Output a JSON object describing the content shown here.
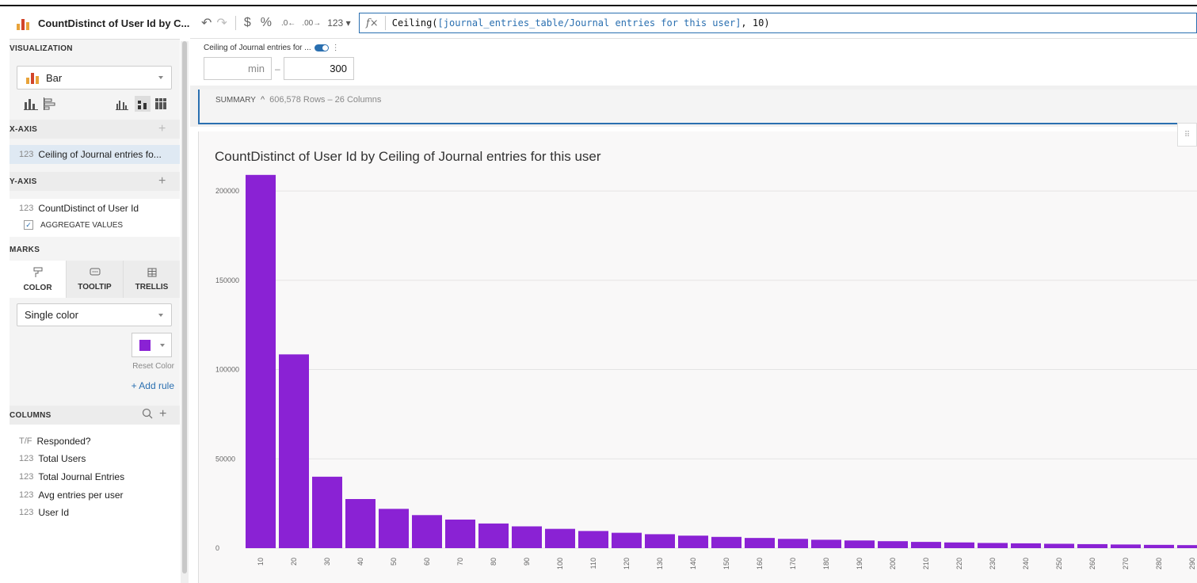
{
  "sidebar": {
    "title": "CountDistinct of User Id by C...",
    "visualization_label": "VISUALIZATION",
    "chart_type": "Bar",
    "xaxis_label": "X-AXIS",
    "xaxis_field": {
      "type": "123",
      "name": "Ceiling of Journal entries fo..."
    },
    "yaxis_label": "Y-AXIS",
    "yaxis_field": {
      "type": "123",
      "name": "CountDistinct of User Id"
    },
    "aggregate_label": "AGGREGATE VALUES",
    "marks_label": "MARKS",
    "tabs": [
      {
        "label": "COLOR",
        "icon": "paint-roller-icon"
      },
      {
        "label": "TOOLTIP",
        "icon": "tooltip-icon"
      },
      {
        "label": "TRELLIS",
        "icon": "grid-icon"
      }
    ],
    "color_mode": "Single color",
    "swatch_color": "#8a22d4",
    "reset_color": "Reset Color",
    "add_rule": "+ Add rule",
    "columns_label": "COLUMNS",
    "columns": [
      {
        "type": "T/F",
        "name": "Responded?"
      },
      {
        "type": "123",
        "name": "Total Users"
      },
      {
        "type": "123",
        "name": "Total Journal Entries"
      },
      {
        "type": "123",
        "name": "Avg entries per user"
      },
      {
        "type": "123",
        "name": "User Id"
      }
    ]
  },
  "toolbar": {
    "dollar": "$",
    "percent": "%",
    "number_format": "123",
    "formula_fn": "Ceiling(",
    "formula_ref": "[journal_entries_table/Journal entries for this user]",
    "formula_tail": ", 10)"
  },
  "filter": {
    "label": "Ceiling of Journal entries for ...",
    "min_placeholder": "min",
    "dash": "–",
    "max_value": "300"
  },
  "summary": {
    "label": "SUMMARY",
    "info": "606,578 Rows – 26 Columns"
  },
  "colors": {
    "accent": "#2a6fb0",
    "bar": "#8a22d4"
  },
  "chart_data": {
    "type": "bar",
    "title": "CountDistinct of User Id by Ceiling of Journal entries for this user",
    "categories": [
      "10",
      "20",
      "30",
      "40",
      "50",
      "60",
      "70",
      "80",
      "90",
      "100",
      "110",
      "120",
      "130",
      "140",
      "150",
      "160",
      "170",
      "180",
      "190",
      "200",
      "210",
      "220",
      "230",
      "240",
      "250",
      "260",
      "270",
      "280",
      "290"
    ],
    "values": [
      209000,
      108500,
      40000,
      27500,
      22000,
      18500,
      16000,
      13800,
      12200,
      10800,
      9600,
      8600,
      7800,
      7000,
      6300,
      5700,
      5200,
      4700,
      4300,
      3900,
      3500,
      3200,
      2900,
      2700,
      2450,
      2250,
      2050,
      1850,
      1700
    ],
    "yticks": [
      "0",
      "50000",
      "100000",
      "150000",
      "200000"
    ],
    "ylim": [
      0,
      220000
    ],
    "grid": true
  }
}
